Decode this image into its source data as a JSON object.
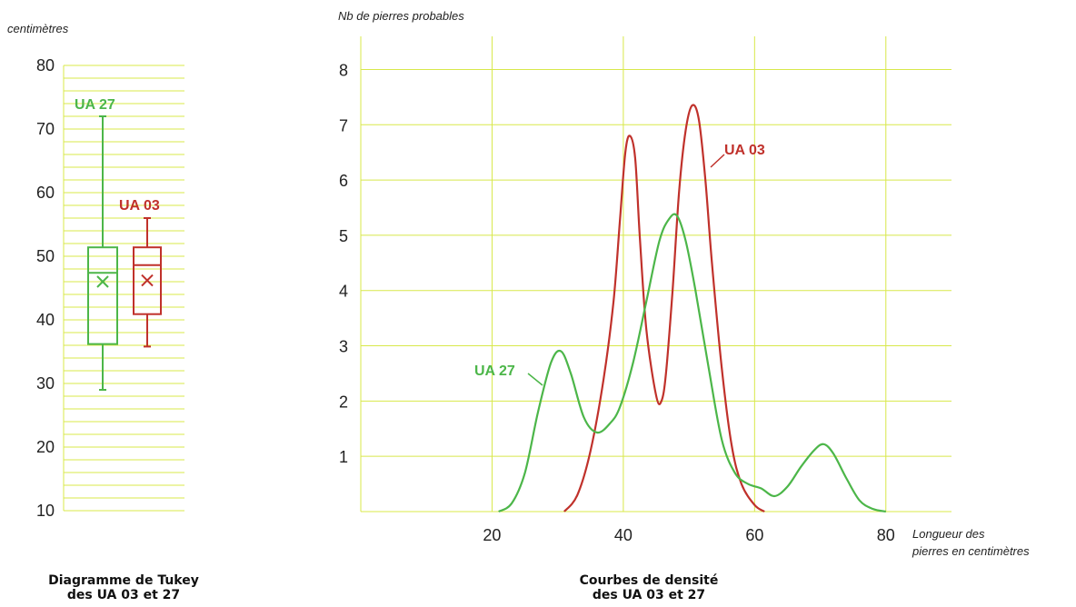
{
  "colors": {
    "grid": "#d8e84a",
    "ua03": "#c0312b",
    "ua27": "#4cb649",
    "text": "#222222"
  },
  "chart_data": [
    {
      "type": "box",
      "title": "Diagramme de Tukey\ndes UA 03 et 27",
      "caption_line1": "Diagramme de Tukey",
      "caption_line2": "des UA 03 et 27",
      "ylabel": "centimètres",
      "ylim": [
        10,
        80
      ],
      "yticks": [
        10,
        20,
        30,
        40,
        50,
        60,
        70,
        80
      ],
      "minor_step": 2,
      "series": [
        {
          "name": "UA 27",
          "min": 29,
          "q1": 36.2,
          "median": 47.4,
          "mean": 46,
          "q3": 51.4,
          "max": 72
        },
        {
          "name": "UA 03",
          "min": 35.8,
          "q1": 40.9,
          "median": 48.6,
          "mean": 46.2,
          "q3": 51.4,
          "max": 56
        }
      ]
    },
    {
      "type": "line",
      "title": "Courbes de densité\ndes UA 03 et 27",
      "caption_line1": "Courbes de densité",
      "caption_line2": "des UA 03 et 27",
      "xlabel_line1": "Longueur des",
      "xlabel_line2": "pierres en centimètres",
      "ylabel": "Nb de pierres probables",
      "xlim": [
        0,
        90
      ],
      "ylim": [
        0,
        8.6
      ],
      "xticks": [
        20,
        40,
        60,
        80
      ],
      "yticks": [
        1,
        2,
        3,
        4,
        5,
        6,
        7,
        8
      ],
      "series": [
        {
          "name": "UA 03",
          "points": [
            [
              31,
              0
            ],
            [
              33,
              0.3
            ],
            [
              35,
              1.1
            ],
            [
              37,
              2.4
            ],
            [
              38.5,
              3.8
            ],
            [
              39.5,
              5.3
            ],
            [
              40.3,
              6.5
            ],
            [
              41,
              6.8
            ],
            [
              41.8,
              6.4
            ],
            [
              42.5,
              5.0
            ],
            [
              43.5,
              3.3
            ],
            [
              45,
              2.1
            ],
            [
              45.8,
              2.0
            ],
            [
              46.5,
              2.5
            ],
            [
              47.5,
              4.0
            ],
            [
              48.5,
              5.8
            ],
            [
              49.5,
              6.9
            ],
            [
              50.5,
              7.35
            ],
            [
              51.5,
              7.1
            ],
            [
              52.5,
              6.0
            ],
            [
              53.5,
              4.5
            ],
            [
              55,
              2.6
            ],
            [
              56.5,
              1.2
            ],
            [
              58,
              0.5
            ],
            [
              60,
              0.12
            ],
            [
              61.5,
              0
            ]
          ]
        },
        {
          "name": "UA 27",
          "points": [
            [
              21,
              0
            ],
            [
              23,
              0.15
            ],
            [
              25,
              0.7
            ],
            [
              27,
              1.8
            ],
            [
              29,
              2.7
            ],
            [
              30.5,
              2.9
            ],
            [
              32,
              2.5
            ],
            [
              34,
              1.7
            ],
            [
              36,
              1.43
            ],
            [
              38,
              1.6
            ],
            [
              39.5,
              1.9
            ],
            [
              41.5,
              2.7
            ],
            [
              43.5,
              3.8
            ],
            [
              45.5,
              4.9
            ],
            [
              47,
              5.3
            ],
            [
              48.2,
              5.35
            ],
            [
              49.5,
              4.9
            ],
            [
              51,
              4.0
            ],
            [
              53,
              2.6
            ],
            [
              55,
              1.3
            ],
            [
              57,
              0.7
            ],
            [
              59,
              0.5
            ],
            [
              61,
              0.42
            ],
            [
              63,
              0.28
            ],
            [
              65,
              0.45
            ],
            [
              67,
              0.8
            ],
            [
              69,
              1.1
            ],
            [
              70.5,
              1.22
            ],
            [
              72,
              1.05
            ],
            [
              74,
              0.6
            ],
            [
              76,
              0.2
            ],
            [
              78,
              0.05
            ],
            [
              80,
              0
            ]
          ]
        }
      ]
    }
  ],
  "labels": {
    "ua27_box": "UA 27",
    "ua03_box": "UA 03",
    "ua03_density": "UA 03",
    "ua27_density": "UA 27"
  }
}
